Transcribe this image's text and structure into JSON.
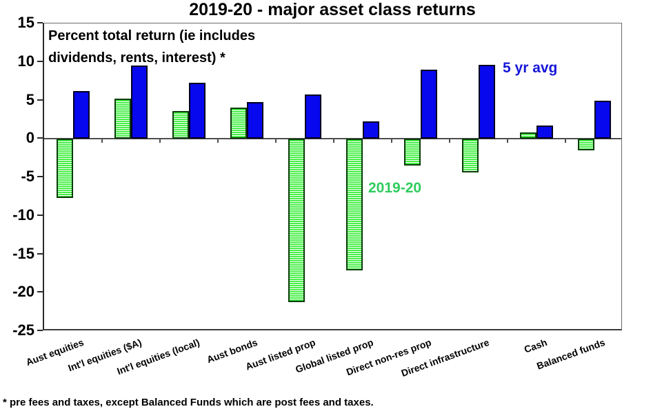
{
  "chart_data": {
    "type": "bar",
    "title": "2019-20 - major asset class returns",
    "annotation_line1": "Percent total return (ie includes",
    "annotation_line2": "dividends, rents, interest) *",
    "footnote": "* pre fees and taxes, except Balanced Funds which are post fees and taxes.",
    "categories": [
      "Aust equities",
      "Int'l equities ($A)",
      "Int'l equities (local)",
      "Aust bonds",
      "Aust listed prop",
      "Global listed prop",
      "Direct non-res prop",
      "Direct infrastructure",
      "Cash",
      "Balanced funds"
    ],
    "series": [
      {
        "name": "2019-20",
        "values": [
          -7.7,
          5.2,
          3.6,
          4.1,
          -21.2,
          -17.1,
          -3.5,
          -4.4,
          0.8,
          -1.5
        ],
        "bar_fill": "#46ef46",
        "bar_stripe_gap": "#ffffff",
        "bar_border": "#083c08",
        "label_color": "#2ecc5e"
      },
      {
        "name": "5 yr avg",
        "values": [
          6.2,
          9.5,
          7.3,
          4.8,
          5.8,
          2.3,
          9.0,
          9.6,
          1.7,
          5.0
        ],
        "bar_fill": "#0808ee",
        "bar_border": "#000020",
        "label_color": "#1616d9"
      }
    ],
    "ylim": [
      -25,
      15
    ],
    "yticks": [
      15,
      10,
      5,
      0,
      -5,
      -10,
      -15,
      -20,
      -25
    ],
    "grid": false,
    "xlabel": "",
    "ylabel": "",
    "legend_position": "inline-text-annotations"
  }
}
